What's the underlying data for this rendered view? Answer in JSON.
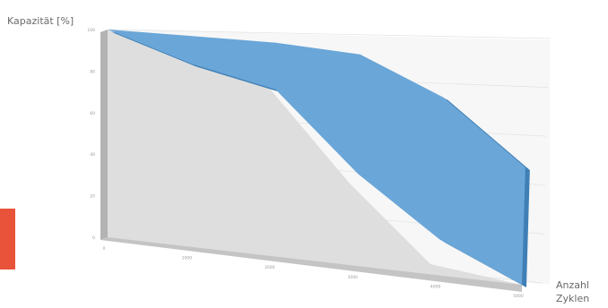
{
  "chart_data": {
    "type": "area",
    "ylabel": "Kapazität [%]",
    "xlabel_line1": "Anzahl",
    "xlabel_line2": "Zyklen",
    "y_ticks": [
      "0",
      "20",
      "40",
      "60",
      "80",
      "100"
    ],
    "x_ticks": [
      "0",
      "1000",
      "2000",
      "3000",
      "4000",
      "5000"
    ],
    "xlim": [
      0,
      5000
    ],
    "ylim": [
      0,
      100
    ],
    "grid": true,
    "series": [
      {
        "role": "upper",
        "x": [
          0,
          1000,
          2000,
          3000,
          4000,
          5000
        ],
        "y": [
          100,
          98,
          96,
          92,
          75,
          48
        ]
      },
      {
        "role": "lower",
        "x": [
          0,
          1000,
          2000,
          3000,
          4000,
          5000
        ],
        "y": [
          100,
          85,
          75,
          40,
          15,
          0
        ]
      }
    ]
  },
  "colors": {
    "fill": "#6aa6d8",
    "edge": "#3f7fb5",
    "floor": "#dedede",
    "wall": "#b3b3b3",
    "back_wall": "#f7f7f7",
    "accent_bar": "#e8533a"
  }
}
